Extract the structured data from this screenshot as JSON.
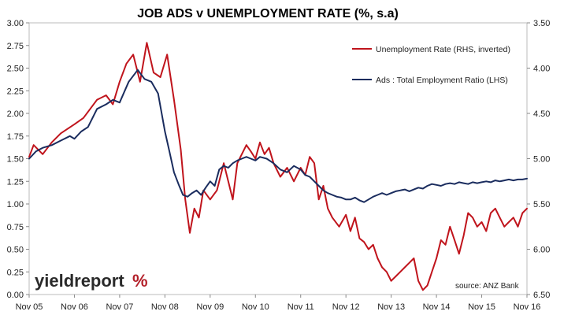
{
  "chart_data": {
    "type": "line",
    "title": "JOB ADS v UNEMPLOYMENT RATE (%, s.a)",
    "categories": [
      "Nov 05",
      "Nov 06",
      "Nov 07",
      "Nov 08",
      "Nov 09",
      "Nov 10",
      "Nov 11",
      "Nov 12",
      "Nov 13",
      "Nov 14",
      "Nov 15",
      "Nov 16"
    ],
    "y_left": {
      "lim": [
        0,
        3
      ],
      "ticks": [
        "0.00",
        "0.25",
        "0.50",
        "0.75",
        "1.00",
        "1.25",
        "1.50",
        "1.75",
        "2.00",
        "2.25",
        "2.50",
        "2.75",
        "3.00"
      ]
    },
    "y_right": {
      "lim": [
        6.5,
        3.5
      ],
      "inverted": true,
      "ticks": [
        "3.50",
        "4.00",
        "4.50",
        "5.00",
        "5.50",
        "6.00",
        "6.50"
      ]
    },
    "grid": false,
    "legend_position": "top-right",
    "series": [
      {
        "name": "Unemployment Rate (RHS, inverted)",
        "axis": "right",
        "color": "#c0141c",
        "x": [
          0,
          0.1,
          0.3,
          0.5,
          0.7,
          1.0,
          1.2,
          1.5,
          1.7,
          1.85,
          2.0,
          2.15,
          2.3,
          2.45,
          2.6,
          2.75,
          2.9,
          3.05,
          3.2,
          3.35,
          3.45,
          3.55,
          3.65,
          3.75,
          3.85,
          4.0,
          4.15,
          4.3,
          4.4,
          4.5,
          4.6,
          4.7,
          4.8,
          4.9,
          5.0,
          5.1,
          5.2,
          5.3,
          5.4,
          5.55,
          5.7,
          5.85,
          6.0,
          6.1,
          6.2,
          6.3,
          6.4,
          6.5,
          6.6,
          6.7,
          6.85,
          7.0,
          7.1,
          7.2,
          7.3,
          7.4,
          7.5,
          7.6,
          7.7,
          7.8,
          7.9,
          8.0,
          8.1,
          8.2,
          8.3,
          8.4,
          8.5,
          8.6,
          8.7,
          8.8,
          8.9,
          9.0,
          9.1,
          9.2,
          9.3,
          9.4,
          9.5,
          9.6,
          9.7,
          9.8,
          9.9,
          10.0,
          10.1,
          10.2,
          10.3,
          10.4,
          10.5,
          10.6,
          10.7,
          10.8,
          10.9,
          11.0
        ],
        "values": [
          4.98,
          4.85,
          4.95,
          4.82,
          4.72,
          4.62,
          4.55,
          4.35,
          4.3,
          4.4,
          4.15,
          3.95,
          3.85,
          4.15,
          3.72,
          4.05,
          4.1,
          3.85,
          4.35,
          4.9,
          5.45,
          5.82,
          5.55,
          5.65,
          5.35,
          5.45,
          5.35,
          5.05,
          5.25,
          5.45,
          5.05,
          4.95,
          4.85,
          4.92,
          5.0,
          4.82,
          4.95,
          4.88,
          5.05,
          5.2,
          5.1,
          5.25,
          5.1,
          5.18,
          4.98,
          5.05,
          5.45,
          5.3,
          5.55,
          5.65,
          5.75,
          5.62,
          5.8,
          5.65,
          5.88,
          5.92,
          6.0,
          5.95,
          6.1,
          6.2,
          6.25,
          6.35,
          6.3,
          6.25,
          6.2,
          6.15,
          6.1,
          6.35,
          6.45,
          6.4,
          6.25,
          6.1,
          5.9,
          5.95,
          5.75,
          5.9,
          6.05,
          5.85,
          5.6,
          5.65,
          5.75,
          5.7,
          5.8,
          5.6,
          5.55,
          5.65,
          5.75,
          5.7,
          5.65,
          5.75,
          5.6,
          5.55
        ]
      },
      {
        "name": "Ads : Total Employment Ratio (LHS)",
        "axis": "left",
        "color": "#1a2c5e",
        "x": [
          0,
          0.15,
          0.3,
          0.5,
          0.7,
          0.9,
          1.0,
          1.15,
          1.3,
          1.5,
          1.7,
          1.85,
          2.0,
          2.2,
          2.4,
          2.55,
          2.7,
          2.85,
          3.0,
          3.1,
          3.2,
          3.3,
          3.4,
          3.5,
          3.6,
          3.7,
          3.8,
          3.9,
          4.0,
          4.1,
          4.2,
          4.3,
          4.4,
          4.5,
          4.6,
          4.7,
          4.8,
          4.9,
          5.0,
          5.1,
          5.25,
          5.4,
          5.55,
          5.7,
          5.85,
          6.0,
          6.1,
          6.2,
          6.3,
          6.4,
          6.5,
          6.6,
          6.7,
          6.8,
          6.9,
          7.0,
          7.1,
          7.2,
          7.3,
          7.4,
          7.5,
          7.6,
          7.7,
          7.8,
          7.9,
          8.0,
          8.1,
          8.2,
          8.3,
          8.4,
          8.5,
          8.6,
          8.7,
          8.8,
          8.9,
          9.0,
          9.1,
          9.2,
          9.3,
          9.4,
          9.5,
          9.6,
          9.7,
          9.8,
          9.9,
          10.0,
          10.1,
          10.2,
          10.3,
          10.4,
          10.5,
          10.6,
          10.7,
          10.8,
          10.9,
          11.0
        ],
        "values": [
          1.5,
          1.58,
          1.62,
          1.65,
          1.7,
          1.75,
          1.72,
          1.8,
          1.85,
          2.05,
          2.1,
          2.15,
          2.12,
          2.35,
          2.48,
          2.38,
          2.35,
          2.22,
          1.8,
          1.58,
          1.35,
          1.22,
          1.1,
          1.08,
          1.12,
          1.15,
          1.1,
          1.18,
          1.25,
          1.2,
          1.38,
          1.42,
          1.4,
          1.45,
          1.48,
          1.5,
          1.52,
          1.5,
          1.48,
          1.52,
          1.5,
          1.45,
          1.38,
          1.35,
          1.42,
          1.38,
          1.32,
          1.3,
          1.25,
          1.2,
          1.15,
          1.12,
          1.1,
          1.08,
          1.07,
          1.05,
          1.05,
          1.07,
          1.04,
          1.02,
          1.05,
          1.08,
          1.1,
          1.12,
          1.1,
          1.12,
          1.14,
          1.15,
          1.16,
          1.14,
          1.16,
          1.18,
          1.17,
          1.2,
          1.22,
          1.21,
          1.2,
          1.22,
          1.23,
          1.22,
          1.24,
          1.23,
          1.22,
          1.24,
          1.23,
          1.24,
          1.25,
          1.24,
          1.26,
          1.25,
          1.26,
          1.27,
          1.26,
          1.27,
          1.27,
          1.28
        ]
      }
    ],
    "source": "source: ANZ Bank"
  },
  "branding": {
    "name": "yieldreport",
    "symbol": "%"
  }
}
